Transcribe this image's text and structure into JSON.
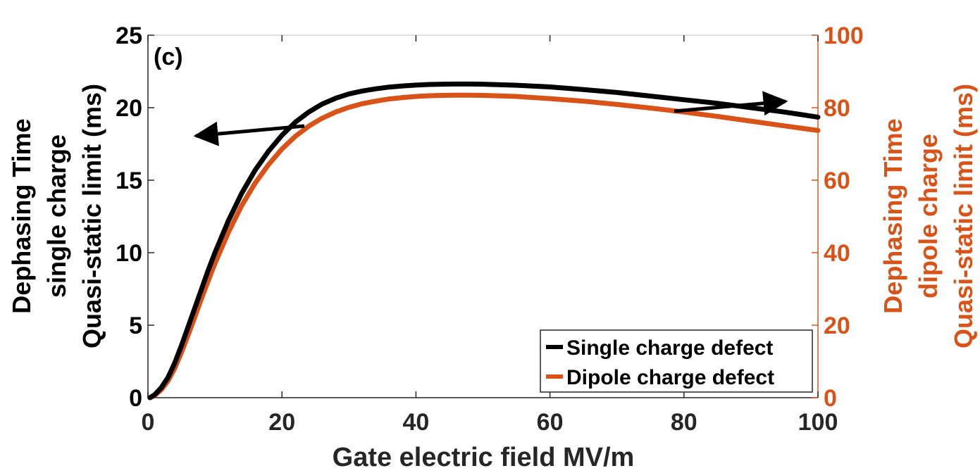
{
  "chart_data": {
    "type": "line",
    "panel_label": "(c)",
    "xlabel": "Gate electric field MV/m",
    "ylabel_left": [
      "Dephasing Time",
      "single charge",
      "Quasi-static limit (ms)"
    ],
    "ylabel_right": [
      "Dephasing Time",
      "dipole charge",
      "Quasi-static limit (ms)"
    ],
    "xlim": [
      0,
      100
    ],
    "ylim_left": [
      0,
      25
    ],
    "ylim_right": [
      0,
      100
    ],
    "xticks": [
      0,
      20,
      40,
      60,
      80,
      100
    ],
    "yticks_left": [
      0,
      5,
      10,
      15,
      20,
      25
    ],
    "yticks_right": [
      0,
      20,
      40,
      60,
      80,
      100
    ],
    "legend_position": "bottom-right",
    "colors": {
      "left_axis": "#000000",
      "right_axis": "#d95319",
      "box": "#c0c0c0"
    },
    "series": [
      {
        "name": "Single charge defect",
        "axis": "left",
        "color": "#000000",
        "x": [
          0.3,
          1,
          2,
          3,
          4,
          5,
          6,
          7,
          8,
          9,
          10,
          12,
          14,
          16,
          18,
          20,
          22,
          24,
          26,
          28,
          30,
          32,
          34,
          36,
          38,
          40,
          42,
          44,
          46,
          48,
          50,
          55,
          60,
          65,
          70,
          75,
          80,
          85,
          90,
          95,
          100
        ],
        "y": [
          0,
          0.2,
          0.7,
          1.4,
          2.4,
          3.6,
          4.9,
          6.2,
          7.5,
          8.8,
          10.0,
          12.2,
          14.1,
          15.7,
          17.0,
          18.1,
          19.0,
          19.7,
          20.25,
          20.65,
          20.95,
          21.15,
          21.3,
          21.42,
          21.5,
          21.56,
          21.6,
          21.62,
          21.63,
          21.63,
          21.62,
          21.55,
          21.43,
          21.25,
          21.05,
          20.8,
          20.55,
          20.3,
          20.0,
          19.7,
          19.35
        ]
      },
      {
        "name": "Dipole charge defect",
        "axis": "right",
        "color": "#d95319",
        "x": [
          0.3,
          1,
          2,
          3,
          4,
          5,
          6,
          7,
          8,
          9,
          10,
          12,
          14,
          16,
          18,
          20,
          22,
          24,
          26,
          28,
          30,
          32,
          34,
          36,
          38,
          40,
          42,
          44,
          46,
          48,
          50,
          55,
          60,
          65,
          70,
          75,
          80,
          85,
          90,
          95,
          100
        ],
        "y": [
          0,
          0.6,
          2.2,
          4.6,
          8.1,
          12.5,
          17.3,
          22.3,
          27.4,
          32.3,
          37.0,
          45.6,
          53.0,
          59.2,
          64.3,
          68.6,
          72.1,
          74.9,
          77.1,
          78.8,
          80.1,
          81.1,
          81.8,
          82.4,
          82.8,
          83.1,
          83.3,
          83.4,
          83.45,
          83.45,
          83.4,
          83.1,
          82.5,
          81.8,
          80.9,
          79.9,
          78.8,
          77.6,
          76.3,
          75.0,
          73.7
        ]
      }
    ],
    "annotation_arrows": [
      {
        "points_to": "left axis",
        "label": ""
      },
      {
        "points_to": "right axis",
        "label": ""
      }
    ]
  }
}
